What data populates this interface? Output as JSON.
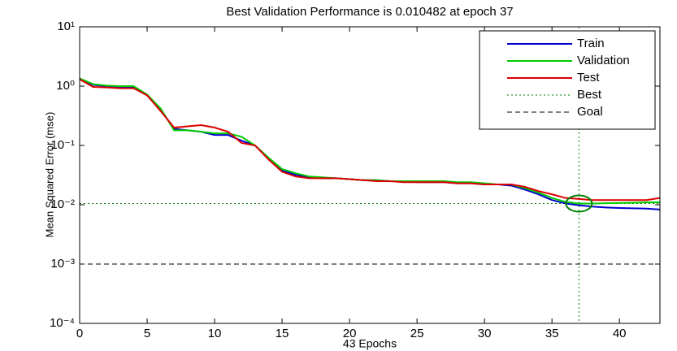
{
  "chart_data": {
    "type": "line",
    "title": "Best Validation Performance is 0.010482 at epoch 37",
    "xlabel": "43 Epochs",
    "ylabel": "Mean Squared Error  (mse)",
    "x": [
      0,
      1,
      2,
      3,
      4,
      5,
      6,
      7,
      8,
      9,
      10,
      11,
      12,
      13,
      14,
      15,
      16,
      17,
      18,
      19,
      20,
      21,
      22,
      23,
      24,
      25,
      26,
      27,
      28,
      29,
      30,
      31,
      32,
      33,
      34,
      35,
      36,
      37,
      38,
      39,
      40,
      41,
      42,
      43
    ],
    "series": [
      {
        "name": "Train",
        "color": "#0000cc",
        "values": [
          1.33,
          1.05,
          1.0,
          0.95,
          0.95,
          0.7,
          0.4,
          0.19,
          0.18,
          0.17,
          0.15,
          0.15,
          0.12,
          0.1,
          0.06,
          0.038,
          0.032,
          0.029,
          0.028,
          0.028,
          0.027,
          0.026,
          0.026,
          0.025,
          0.025,
          0.024,
          0.024,
          0.024,
          0.023,
          0.023,
          0.022,
          0.022,
          0.021,
          0.018,
          0.015,
          0.012,
          0.0105,
          0.0098,
          0.0093,
          0.009,
          0.0088,
          0.0087,
          0.0086,
          0.0083
        ]
      },
      {
        "name": "Validation",
        "color": "#00cc00",
        "values": [
          1.35,
          1.08,
          1.02,
          1.0,
          1.0,
          0.72,
          0.42,
          0.18,
          0.18,
          0.17,
          0.16,
          0.16,
          0.14,
          0.1,
          0.062,
          0.04,
          0.034,
          0.03,
          0.029,
          0.028,
          0.027,
          0.026,
          0.026,
          0.025,
          0.025,
          0.025,
          0.025,
          0.025,
          0.024,
          0.024,
          0.023,
          0.022,
          0.022,
          0.019,
          0.016,
          0.013,
          0.0112,
          0.010482,
          0.0105,
          0.0106,
          0.0107,
          0.0108,
          0.011,
          0.011
        ]
      },
      {
        "name": "Test",
        "color": "#dd0000",
        "values": [
          1.3,
          0.97,
          0.95,
          0.92,
          0.92,
          0.7,
          0.38,
          0.2,
          0.21,
          0.22,
          0.2,
          0.17,
          0.11,
          0.1,
          0.058,
          0.036,
          0.03,
          0.028,
          0.028,
          0.028,
          0.027,
          0.026,
          0.025,
          0.025,
          0.024,
          0.024,
          0.024,
          0.024,
          0.023,
          0.023,
          0.022,
          0.022,
          0.022,
          0.02,
          0.017,
          0.015,
          0.013,
          0.0125,
          0.012,
          0.012,
          0.012,
          0.012,
          0.012,
          0.013
        ]
      }
    ],
    "reference_lines": [
      {
        "name": "Best",
        "color": "#008000",
        "style": "dotted",
        "x": 37,
        "y": 0.010482
      },
      {
        "name": "Goal",
        "color": "#000000",
        "style": "dashed",
        "y": 0.001
      }
    ],
    "xlim": [
      0,
      43
    ],
    "xticks": [
      0,
      5,
      10,
      15,
      20,
      25,
      30,
      35,
      40
    ],
    "ylim": [
      0.0001,
      10
    ],
    "yticks": [
      {
        "value": 0.0001,
        "label": "10⁻⁴"
      },
      {
        "value": 0.001,
        "label": "10⁻³"
      },
      {
        "value": 0.01,
        "label": "10⁻²"
      },
      {
        "value": 0.1,
        "label": "10⁻¹"
      },
      {
        "value": 1,
        "label": "10⁰"
      },
      {
        "value": 10,
        "label": "10¹"
      }
    ],
    "log_y": true,
    "legend": "upper right"
  }
}
